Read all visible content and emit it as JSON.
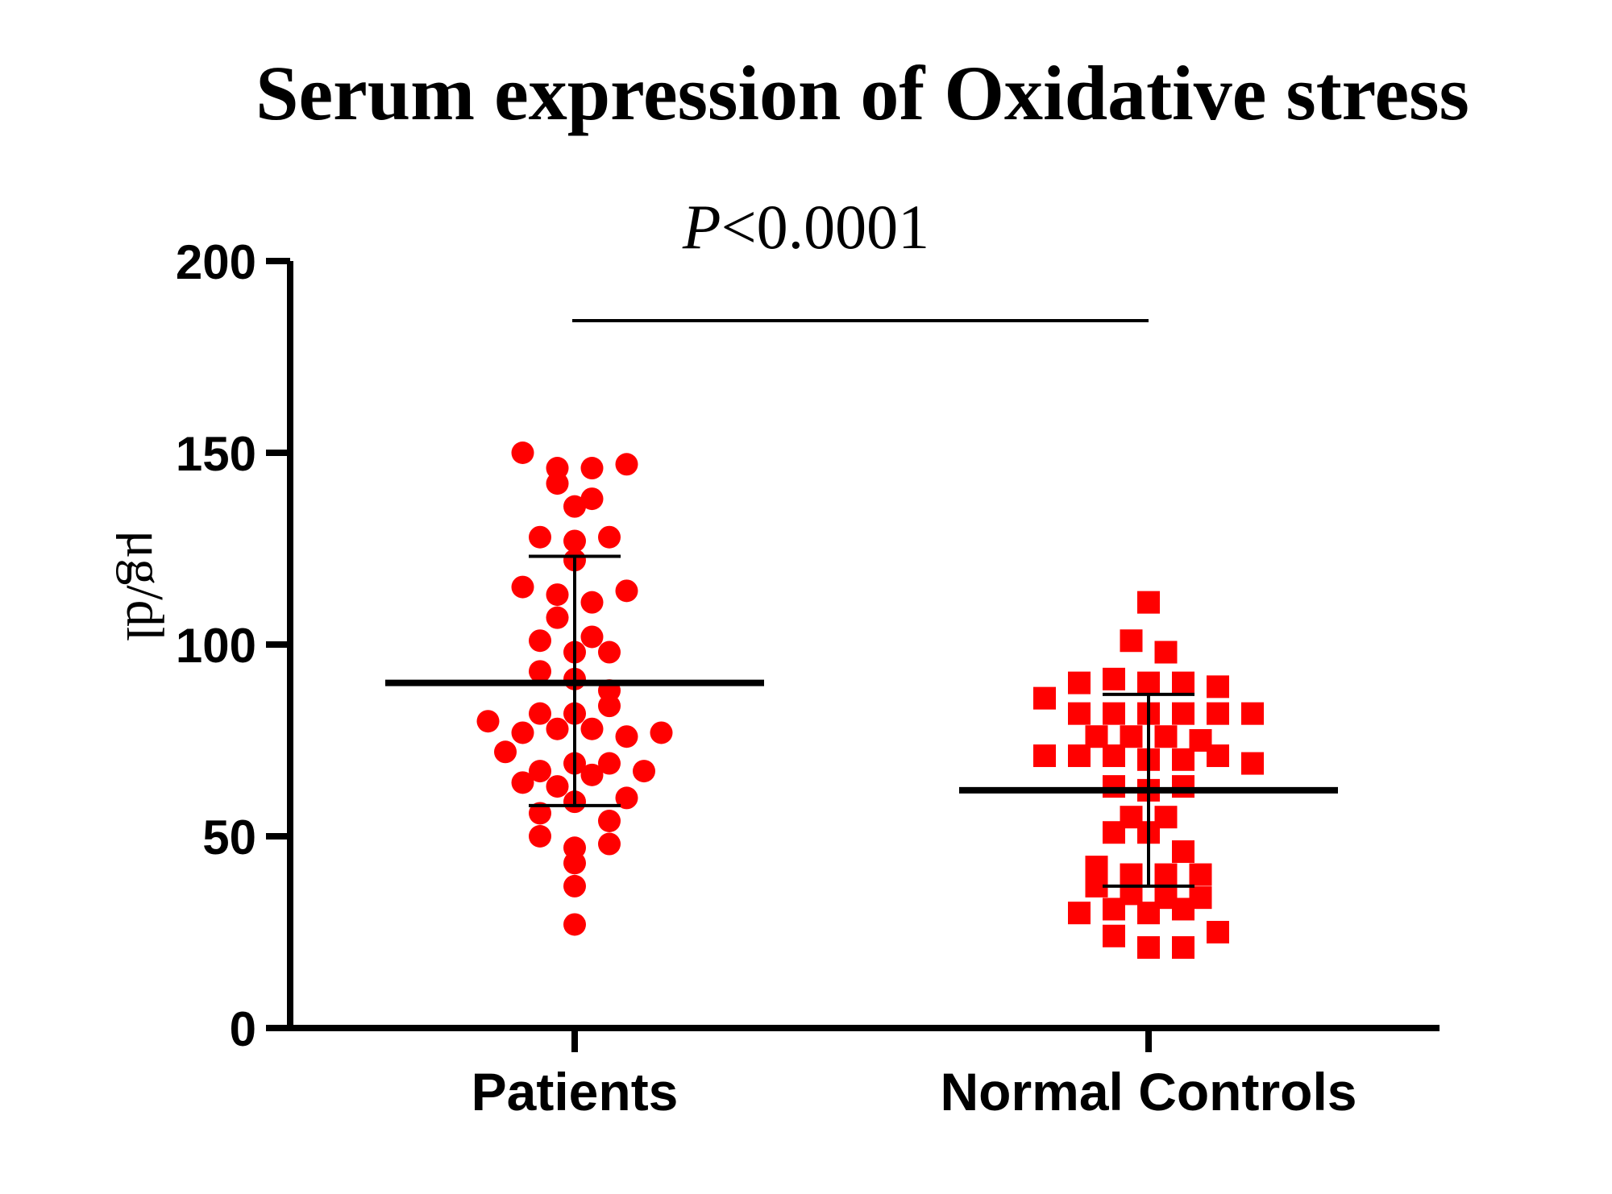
{
  "chart_data": {
    "type": "scatter",
    "title": "Serum expression of Oxidative stress",
    "ylabel": "μg/dl",
    "xlabel": "",
    "ylim": [
      0,
      200
    ],
    "yticks": [
      0,
      50,
      100,
      150,
      200
    ],
    "categories": [
      "Patients",
      "Normal Controls"
    ],
    "annotation": {
      "prefix": "P",
      "text": "<0.0001"
    },
    "colors": {
      "points": "#ff0000",
      "axes": "#000000"
    },
    "series": [
      {
        "marker": "circle",
        "mean": 90,
        "sd_low": 58,
        "sd_high": 123,
        "values": [
          150,
          146,
          146,
          147,
          142,
          136,
          138,
          128,
          122,
          127,
          128,
          115,
          113,
          111,
          114,
          107,
          101,
          98,
          98,
          93,
          102,
          91,
          88,
          82,
          80,
          77,
          82,
          84,
          78,
          78,
          72,
          76,
          77,
          67,
          64,
          69,
          69,
          63,
          66,
          67,
          56,
          60,
          59,
          54,
          50,
          47,
          48,
          43,
          37,
          27
        ]
      },
      {
        "marker": "square",
        "mean": 62,
        "sd_low": 37,
        "sd_high": 87,
        "values": [
          111,
          101,
          98,
          90,
          91,
          90,
          90,
          89,
          86,
          82,
          82,
          82,
          82,
          82,
          82,
          76,
          76,
          76,
          75,
          71,
          71,
          71,
          70,
          70,
          71,
          69,
          63,
          62,
          63,
          55,
          55,
          51,
          51,
          46,
          42,
          40,
          40,
          40,
          37,
          35,
          34,
          34,
          30,
          31,
          30,
          31,
          25,
          24,
          21,
          21
        ]
      }
    ]
  }
}
